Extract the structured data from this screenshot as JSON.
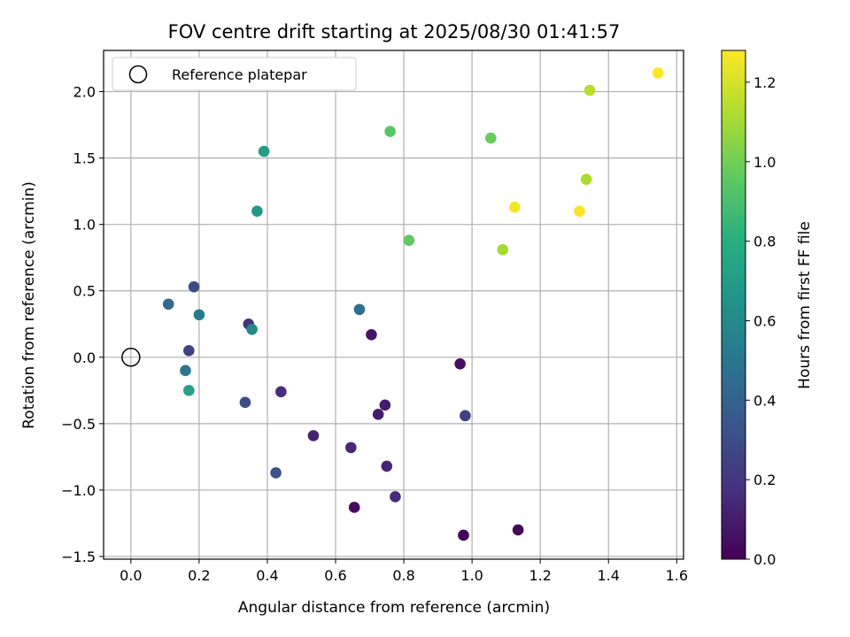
{
  "chart_data": {
    "type": "scatter",
    "title": "FOV centre drift starting at 2025/08/30 01:41:57",
    "xlabel": "Angular distance from reference (arcmin)",
    "ylabel": "Rotation from reference (arcmin)",
    "xlim": [
      -0.08,
      1.62
    ],
    "ylim": [
      -1.52,
      2.31
    ],
    "xticks": [
      0.0,
      0.2,
      0.4,
      0.6,
      0.8,
      1.0,
      1.2,
      1.4,
      1.6
    ],
    "xtick_labels": [
      "0.0",
      "0.2",
      "0.4",
      "0.6",
      "0.8",
      "1.0",
      "1.2",
      "1.4",
      "1.6"
    ],
    "yticks": [
      -1.5,
      -1.0,
      -0.5,
      0.0,
      0.5,
      1.0,
      1.5,
      2.0
    ],
    "ytick_labels": [
      "−1.5",
      "−1.0",
      "−0.5",
      "0.0",
      "0.5",
      "1.0",
      "1.5",
      "2.0"
    ],
    "grid": true,
    "legend_position": "top-left",
    "reference": {
      "label": "Reference platepar",
      "x": 0.0,
      "y": 0.0
    },
    "colorbar": {
      "label": "Hours from first FF file",
      "colormap": "viridis",
      "range": [
        0.0,
        1.28
      ],
      "ticks": [
        0.0,
        0.2,
        0.4,
        0.6,
        0.8,
        1.0,
        1.2
      ],
      "tick_labels": [
        "0.0",
        "0.2",
        "0.4",
        "0.6",
        "0.8",
        "1.0",
        "1.2"
      ]
    },
    "points": [
      {
        "x": 0.975,
        "y": -1.34,
        "c": 0.0
      },
      {
        "x": 1.135,
        "y": -1.3,
        "c": 0.02
      },
      {
        "x": 0.655,
        "y": -1.13,
        "c": 0.04
      },
      {
        "x": 0.965,
        "y": -0.05,
        "c": 0.05
      },
      {
        "x": 0.705,
        "y": 0.17,
        "c": 0.07
      },
      {
        "x": 0.745,
        "y": -0.36,
        "c": 0.09
      },
      {
        "x": 0.725,
        "y": -0.43,
        "c": 0.1
      },
      {
        "x": 0.535,
        "y": -0.59,
        "c": 0.12
      },
      {
        "x": 0.75,
        "y": -0.82,
        "c": 0.13
      },
      {
        "x": 0.645,
        "y": -0.68,
        "c": 0.14
      },
      {
        "x": 0.775,
        "y": -1.05,
        "c": 0.15
      },
      {
        "x": 0.44,
        "y": -0.26,
        "c": 0.16
      },
      {
        "x": 0.345,
        "y": 0.25,
        "c": 0.19
      },
      {
        "x": 0.98,
        "y": -0.44,
        "c": 0.24
      },
      {
        "x": 0.17,
        "y": 0.05,
        "c": 0.26
      },
      {
        "x": 0.185,
        "y": 0.53,
        "c": 0.28
      },
      {
        "x": 0.335,
        "y": -0.34,
        "c": 0.3
      },
      {
        "x": 0.425,
        "y": -0.87,
        "c": 0.32
      },
      {
        "x": 0.11,
        "y": 0.4,
        "c": 0.44
      },
      {
        "x": 0.67,
        "y": 0.36,
        "c": 0.46
      },
      {
        "x": 0.16,
        "y": -0.1,
        "c": 0.5
      },
      {
        "x": 0.2,
        "y": 0.32,
        "c": 0.53
      },
      {
        "x": 0.355,
        "y": 0.21,
        "c": 0.6
      },
      {
        "x": 0.37,
        "y": 1.1,
        "c": 0.68
      },
      {
        "x": 0.39,
        "y": 1.55,
        "c": 0.7
      },
      {
        "x": 0.17,
        "y": -0.25,
        "c": 0.72
      },
      {
        "x": 0.76,
        "y": 1.7,
        "c": 0.94
      },
      {
        "x": 0.815,
        "y": 0.88,
        "c": 0.96
      },
      {
        "x": 1.055,
        "y": 1.65,
        "c": 0.98
      },
      {
        "x": 1.09,
        "y": 0.81,
        "c": 1.1
      },
      {
        "x": 1.335,
        "y": 1.34,
        "c": 1.12
      },
      {
        "x": 1.345,
        "y": 2.01,
        "c": 1.14
      },
      {
        "x": 1.125,
        "y": 1.13,
        "c": 1.26
      },
      {
        "x": 1.315,
        "y": 1.1,
        "c": 1.27
      },
      {
        "x": 1.545,
        "y": 2.14,
        "c": 1.28
      }
    ]
  }
}
